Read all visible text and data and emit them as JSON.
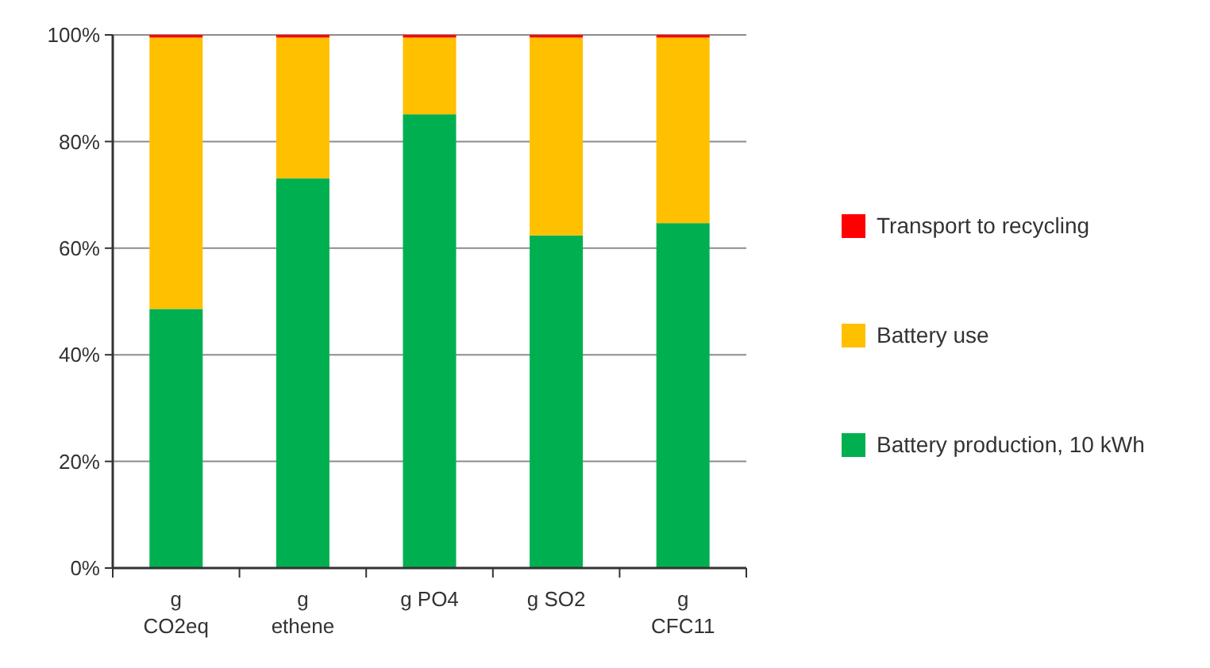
{
  "chart_data": {
    "type": "bar",
    "stacked": true,
    "categories": [
      "g CO2eq",
      "g ethene",
      "g PO4",
      "g SO2",
      "g CFC11"
    ],
    "series": [
      {
        "name": "Battery production, 10 kWh",
        "color": "#00b050",
        "values": [
          48.6,
          73.1,
          85.1,
          62.4,
          64.7
        ]
      },
      {
        "name": "Battery use",
        "color": "#ffc000",
        "values": [
          50.9,
          26.4,
          14.4,
          37.1,
          34.8
        ]
      },
      {
        "name": "Transport to recycling",
        "color": "#ff0000",
        "values": [
          0.5,
          0.5,
          0.5,
          0.5,
          0.5
        ]
      }
    ],
    "ylim": [
      0,
      100
    ],
    "yticks": [
      {
        "value": 0,
        "label": "0%"
      },
      {
        "value": 20,
        "label": "20%"
      },
      {
        "value": 40,
        "label": "40%"
      },
      {
        "value": 60,
        "label": "60%"
      },
      {
        "value": 80,
        "label": "80%"
      },
      {
        "value": 100,
        "label": "100%"
      }
    ],
    "grid": "y",
    "legend": "right"
  }
}
